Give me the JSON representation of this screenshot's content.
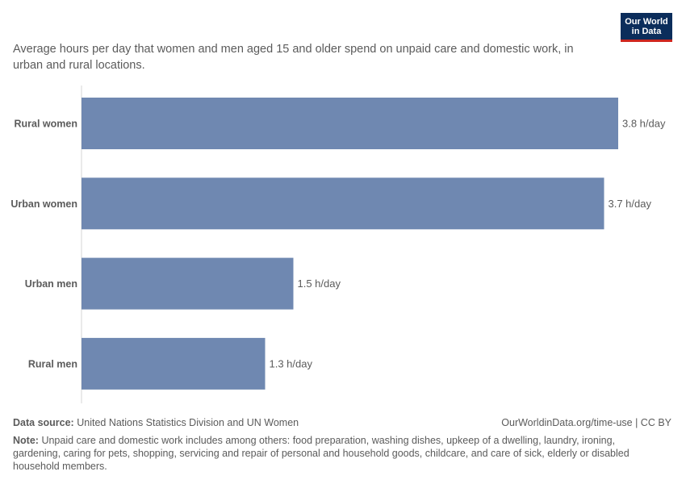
{
  "subtitle": "Average hours per day that women and men aged 15 and older spend on unpaid care and domestic work, in urban and rural locations.",
  "logo": {
    "line1": "Our World",
    "line2": "in Data"
  },
  "chart_data": {
    "type": "bar",
    "orientation": "horizontal",
    "categories": [
      "Rural women",
      "Urban women",
      "Urban men",
      "Rural men"
    ],
    "values": [
      3.8,
      3.7,
      1.5,
      1.3
    ],
    "value_labels": [
      "3.8 h/day",
      "3.7 h/day",
      "1.5 h/day",
      "1.3 h/day"
    ],
    "unit": "h/day",
    "xlim": [
      0,
      3.8
    ],
    "bar_color": "#6f88b1",
    "grid": false
  },
  "footer": {
    "source_label": "Data source:",
    "source_text": "United Nations Statistics Division and UN Women",
    "url": "OurWorldinData.org/time-use | CC BY",
    "note_label": "Note:",
    "note_text": "Unpaid care and domestic work includes among others: food preparation, washing dishes, upkeep of a dwelling, laundry, ironing, gardening, caring for pets, shopping, servicing and repair of personal and household goods, childcare, and care of sick, elderly or disabled household members."
  }
}
